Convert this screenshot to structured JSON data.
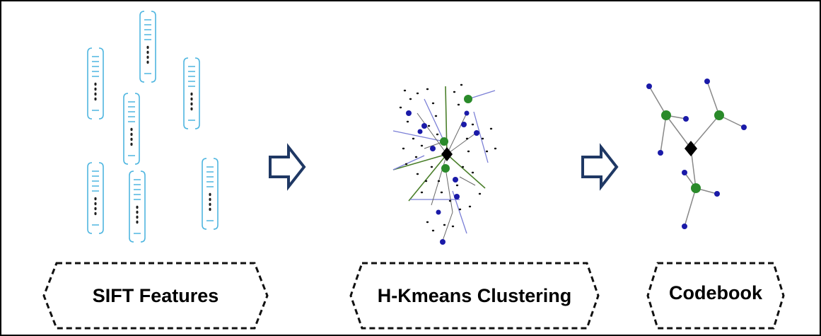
{
  "steps": [
    {
      "label": "SIFT Features"
    },
    {
      "label": "H-Kmeans Clustering"
    },
    {
      "label": "Codebook"
    }
  ]
}
